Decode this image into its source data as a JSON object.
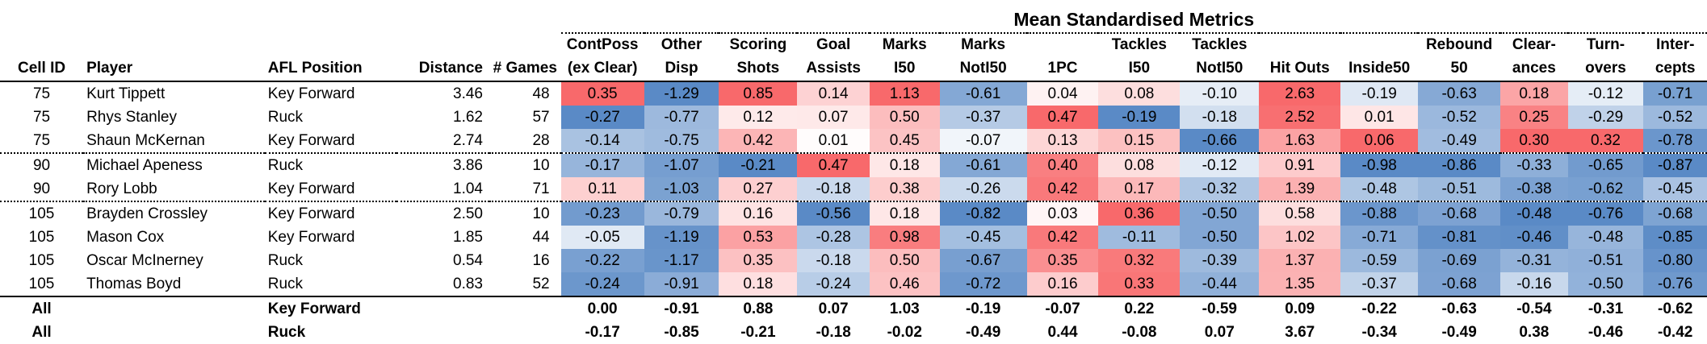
{
  "title": "Mean Standardised Metrics",
  "headers": {
    "cell_id": "Cell ID",
    "player": "Player",
    "position": "AFL Position",
    "distance": "Distance",
    "games": "# Games",
    "metrics": [
      {
        "line1": "ContPoss",
        "line2": "(ex Clear)"
      },
      {
        "line1": "Other",
        "line2": "Disp"
      },
      {
        "line1": "Scoring",
        "line2": "Shots"
      },
      {
        "line1": "Goal",
        "line2": "Assists"
      },
      {
        "line1": "Marks",
        "line2": "I50"
      },
      {
        "line1": "Marks",
        "line2": "NotI50"
      },
      {
        "line1": "",
        "line2": "1PC"
      },
      {
        "line1": "Tackles",
        "line2": "I50"
      },
      {
        "line1": "Tackles",
        "line2": "NotI50"
      },
      {
        "line1": "",
        "line2": "Hit Outs"
      },
      {
        "line1": "",
        "line2": "Inside50"
      },
      {
        "line1": "Rebound",
        "line2": "50"
      },
      {
        "line1": "Clear-",
        "line2": "ances"
      },
      {
        "line1": "Turn-",
        "line2": "overs"
      },
      {
        "line1": "Inter-",
        "line2": "cepts"
      }
    ]
  },
  "rows": [
    {
      "cell_id": "75",
      "player": "Kurt Tippett",
      "position": "Key Forward",
      "distance": "3.46",
      "games": "48",
      "values": [
        "0.35",
        "-1.29",
        "0.85",
        "0.14",
        "1.13",
        "-0.61",
        "0.04",
        "0.08",
        "-0.10",
        "2.63",
        "-0.19",
        "-0.63",
        "0.18",
        "-0.12",
        "-0.71"
      ]
    },
    {
      "cell_id": "75",
      "player": "Rhys Stanley",
      "position": "Ruck",
      "distance": "1.62",
      "games": "57",
      "values": [
        "-0.27",
        "-0.77",
        "0.12",
        "0.07",
        "0.50",
        "-0.37",
        "0.47",
        "-0.19",
        "-0.18",
        "2.52",
        "0.01",
        "-0.52",
        "0.25",
        "-0.29",
        "-0.52"
      ]
    },
    {
      "cell_id": "75",
      "player": "Shaun McKernan",
      "position": "Key Forward",
      "distance": "2.74",
      "games": "28",
      "values": [
        "-0.14",
        "-0.75",
        "0.42",
        "0.01",
        "0.45",
        "-0.07",
        "0.13",
        "0.15",
        "-0.66",
        "1.63",
        "0.06",
        "-0.49",
        "0.30",
        "0.32",
        "-0.78"
      ]
    },
    {
      "cell_id": "90",
      "player": "Michael Apeness",
      "position": "Ruck",
      "distance": "3.86",
      "games": "10",
      "values": [
        "-0.17",
        "-1.07",
        "-0.21",
        "0.47",
        "0.18",
        "-0.61",
        "0.40",
        "0.08",
        "-0.12",
        "0.91",
        "-0.98",
        "-0.86",
        "-0.33",
        "-0.65",
        "-0.87"
      ]
    },
    {
      "cell_id": "90",
      "player": "Rory Lobb",
      "position": "Key Forward",
      "distance": "1.04",
      "games": "71",
      "values": [
        "0.11",
        "-1.03",
        "0.27",
        "-0.18",
        "0.38",
        "-0.26",
        "0.42",
        "0.17",
        "-0.32",
        "1.39",
        "-0.48",
        "-0.51",
        "-0.38",
        "-0.62",
        "-0.45"
      ]
    },
    {
      "cell_id": "105",
      "player": "Brayden Crossley",
      "position": "Key Forward",
      "distance": "2.50",
      "games": "10",
      "values": [
        "-0.23",
        "-0.79",
        "0.16",
        "-0.56",
        "0.18",
        "-0.82",
        "0.03",
        "0.36",
        "-0.50",
        "0.58",
        "-0.88",
        "-0.68",
        "-0.48",
        "-0.76",
        "-0.68"
      ]
    },
    {
      "cell_id": "105",
      "player": "Mason Cox",
      "position": "Key Forward",
      "distance": "1.85",
      "games": "44",
      "values": [
        "-0.05",
        "-1.19",
        "0.53",
        "-0.28",
        "0.98",
        "-0.45",
        "0.42",
        "-0.11",
        "-0.50",
        "1.02",
        "-0.71",
        "-0.81",
        "-0.46",
        "-0.48",
        "-0.85"
      ]
    },
    {
      "cell_id": "105",
      "player": "Oscar McInerney",
      "position": "Ruck",
      "distance": "0.54",
      "games": "16",
      "values": [
        "-0.22",
        "-1.17",
        "0.35",
        "-0.18",
        "0.50",
        "-0.67",
        "0.35",
        "0.32",
        "-0.39",
        "1.37",
        "-0.59",
        "-0.69",
        "-0.31",
        "-0.51",
        "-0.80"
      ]
    },
    {
      "cell_id": "105",
      "player": "Thomas Boyd",
      "position": "Ruck",
      "distance": "0.83",
      "games": "52",
      "values": [
        "-0.24",
        "-0.91",
        "0.18",
        "-0.24",
        "0.46",
        "-0.72",
        "0.16",
        "0.33",
        "-0.44",
        "1.35",
        "-0.37",
        "-0.68",
        "-0.16",
        "-0.50",
        "-0.76"
      ]
    }
  ],
  "summary": [
    {
      "label": "All",
      "position": "Key Forward",
      "values": [
        "0.00",
        "-0.91",
        "0.88",
        "0.07",
        "1.03",
        "-0.19",
        "-0.07",
        "0.22",
        "-0.59",
        "0.09",
        "-0.22",
        "-0.63",
        "-0.54",
        "-0.31",
        "-0.62"
      ]
    },
    {
      "label": "All",
      "position": "Ruck",
      "values": [
        "-0.17",
        "-0.85",
        "-0.21",
        "-0.18",
        "-0.02",
        "-0.49",
        "0.44",
        "-0.08",
        "0.07",
        "3.67",
        "-0.34",
        "-0.49",
        "0.38",
        "-0.46",
        "-0.42"
      ]
    }
  ],
  "colors": {
    "positive": "#f8696b",
    "negative": "#5a8ac6",
    "neutral": "#ffffff"
  }
}
